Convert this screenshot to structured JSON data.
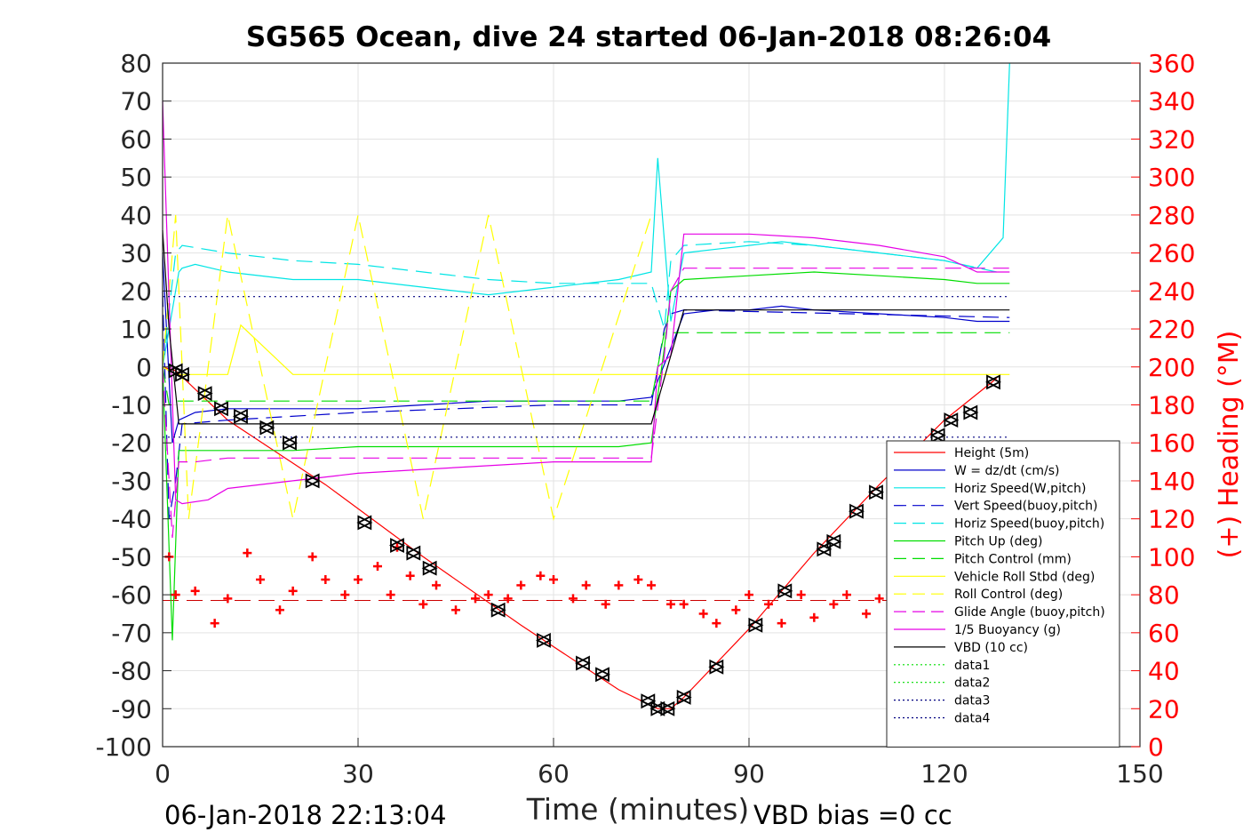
{
  "chart_data": {
    "type": "line",
    "title": "SG565 Ocean, dive 24 started 06-Jan-2018 08:26:04",
    "xlabel": "Time (minutes)",
    "ylabel": "",
    "y2label": "(+) Heading (°M)",
    "xlim": [
      0,
      150
    ],
    "ylim": [
      -100,
      80
    ],
    "y2lim": [
      0,
      360
    ],
    "xticks": [
      "0",
      "30",
      "60",
      "90",
      "120",
      "150"
    ],
    "yticks": [
      "80",
      "70",
      "60",
      "50",
      "40",
      "30",
      "20",
      "10",
      "0",
      "-10",
      "-20",
      "-30",
      "-40",
      "-50",
      "-60",
      "-70",
      "-80",
      "-90",
      "-100"
    ],
    "y2ticks": [
      "360",
      "340",
      "320",
      "300",
      "280",
      "260",
      "240",
      "220",
      "200",
      "180",
      "160",
      "140",
      "120",
      "100",
      "80",
      "60",
      "40",
      "20",
      "0"
    ],
    "grid": true,
    "legend_position": "bottom-right",
    "footer_left": "06-Jan-2018 22:13:04",
    "footer_right": "VBD bias =0 cc",
    "colors": {
      "red": "#ff0000",
      "blue": "#0000cc",
      "cyan": "#00e5e5",
      "green": "#00dd00",
      "yellow": "#ffff00",
      "magenta": "#e600e6",
      "black": "#000000"
    },
    "series": [
      {
        "name": "Height (5m)",
        "color": "#ff0000",
        "dash": "solid",
        "x": [
          0,
          2,
          10,
          25,
          40,
          55,
          70,
          76,
          78,
          80,
          90,
          100,
          110,
          120,
          128
        ],
        "y": [
          0,
          -1,
          -14,
          -31,
          -50,
          -68,
          -85,
          -90,
          -90,
          -87,
          -69,
          -49,
          -31,
          -14,
          -3
        ]
      },
      {
        "name": "W = dz/dt (cm/s)",
        "color": "#0000cc",
        "dash": "solid",
        "x": [
          0,
          1.5,
          2.5,
          5,
          10,
          20,
          30,
          40,
          50,
          60,
          70,
          75,
          78,
          80,
          85,
          90,
          95,
          100,
          110,
          120,
          125,
          130
        ],
        "y": [
          30,
          -20,
          -14,
          -12,
          -11,
          -11,
          -11,
          -10,
          -9,
          -9,
          -9,
          -8,
          5,
          14,
          15,
          15,
          16,
          15,
          14,
          13,
          12,
          12
        ]
      },
      {
        "name": "Horiz Speed(W,pitch)",
        "color": "#00e5e5",
        "dash": "solid",
        "x": [
          0,
          2.5,
          3,
          5,
          10,
          20,
          30,
          40,
          50,
          60,
          70,
          75,
          76,
          78,
          80,
          85,
          90,
          95,
          100,
          110,
          120,
          125,
          129,
          130
        ],
        "y": [
          0,
          25,
          26,
          27,
          25,
          23,
          23,
          21,
          19,
          21,
          23,
          25,
          55,
          12,
          30,
          31,
          32,
          33,
          32,
          30,
          28,
          26,
          34,
          80
        ]
      },
      {
        "name": "Vert Speed(buoy,pitch)",
        "color": "#0000cc",
        "dash": "dashed",
        "x": [
          0,
          1,
          2,
          3,
          10,
          30,
          60,
          75,
          77,
          78,
          80,
          130
        ],
        "y": [
          20,
          -40,
          -30,
          -15,
          -14,
          -12,
          -10,
          -10,
          10,
          14,
          15,
          13
        ]
      },
      {
        "name": "Horiz Speed(buoy,pitch)",
        "color": "#00e5e5",
        "dash": "dashed",
        "x": [
          0,
          2,
          3,
          10,
          20,
          30,
          40,
          50,
          60,
          70,
          75,
          77,
          78,
          80,
          90,
          100,
          110,
          120,
          128
        ],
        "y": [
          0,
          30,
          32,
          30,
          28,
          27,
          25,
          23,
          22,
          22,
          22,
          10,
          28,
          32,
          33,
          32,
          30,
          28,
          25
        ]
      },
      {
        "name": "Pitch Up (deg)",
        "color": "#00dd00",
        "dash": "solid",
        "x": [
          0,
          1.5,
          2.5,
          5,
          10,
          20,
          30,
          40,
          50,
          60,
          70,
          75,
          77,
          78,
          80,
          90,
          100,
          110,
          120,
          125,
          130
        ],
        "y": [
          0,
          -72,
          -22,
          -22,
          -22,
          -22,
          -21,
          -21,
          -21,
          -21,
          -21,
          -20,
          5,
          20,
          23,
          24,
          25,
          24,
          23,
          22,
          22
        ]
      },
      {
        "name": "Pitch Control (mm)",
        "color": "#00dd00",
        "dash": "dashed",
        "x": [
          0,
          1,
          2,
          3,
          10,
          30,
          60,
          75,
          77,
          78,
          80,
          130
        ],
        "y": [
          0,
          -10,
          -9,
          -9,
          -9,
          -9,
          -9,
          -9,
          9,
          9,
          9,
          9
        ]
      },
      {
        "name": "Vehicle Roll Stbd (deg)",
        "color": "#ffff00",
        "dash": "solid",
        "x": [
          0,
          2,
          5,
          10,
          12,
          20,
          30,
          40,
          50,
          60,
          75,
          80,
          90,
          100,
          110,
          120,
          130
        ],
        "y": [
          0,
          -2,
          -2,
          -2,
          11,
          -2,
          -2,
          -2,
          -2,
          -2,
          -2,
          -2,
          -2,
          -2,
          -2,
          -2,
          -2
        ]
      },
      {
        "name": "Roll Control (deg)",
        "color": "#ffff00",
        "dash": "dashed",
        "x": [
          0,
          2,
          4,
          10,
          20,
          30,
          40,
          50,
          60,
          75
        ],
        "y": [
          0,
          40,
          -40,
          40,
          -40,
          40,
          -40,
          40,
          -40,
          40
        ]
      },
      {
        "name": "Glide Angle (buoy,pitch)",
        "color": "#e600e6",
        "dash": "dashed",
        "x": [
          0,
          1.5,
          2.5,
          5,
          10,
          30,
          60,
          75,
          77,
          78,
          80,
          100,
          120,
          130
        ],
        "y": [
          0,
          -45,
          -25,
          -25,
          -24,
          -24,
          -24,
          -24,
          3,
          20,
          26,
          26,
          26,
          26
        ]
      },
      {
        "name": "1/5 Buoyancy (g)",
        "color": "#e600e6",
        "dash": "solid",
        "x": [
          0,
          2,
          3,
          7,
          10,
          20,
          30,
          40,
          50,
          60,
          70,
          75,
          76,
          78,
          80,
          90,
          100,
          110,
          120,
          125,
          130
        ],
        "y": [
          70,
          -35,
          -36,
          -35,
          -32,
          -30,
          -28,
          -27,
          -26,
          -25,
          -25,
          -25,
          0,
          3,
          35,
          35,
          34,
          32,
          29,
          25,
          25
        ]
      },
      {
        "name": "VBD (10 cc)",
        "color": "#000000",
        "dash": "solid",
        "x": [
          0,
          1,
          2.5,
          5,
          10,
          30,
          60,
          75,
          78,
          80,
          130
        ],
        "y": [
          36,
          10,
          -15,
          -15,
          -15,
          -15,
          -15,
          -15,
          3,
          15,
          15
        ]
      },
      {
        "name": "data1",
        "color": "#00dd00",
        "dash": "dotted",
        "x": [],
        "y": []
      },
      {
        "name": "data2",
        "color": "#00dd00",
        "dash": "dotted",
        "x": [],
        "y": []
      },
      {
        "name": "data3",
        "color": "#000080",
        "dash": "dotted",
        "x": [
          0,
          130
        ],
        "y": [
          18.5,
          18.5
        ]
      },
      {
        "name": "data4",
        "color": "#000080",
        "dash": "dotted",
        "x": [
          0,
          130
        ],
        "y": [
          -18.5,
          -18.5
        ]
      }
    ],
    "heading_reference": {
      "color": "#cc0000",
      "y2": [
        77,
        77
      ],
      "x": [
        0,
        130
      ]
    },
    "heading_marks": {
      "color": "#ff0000",
      "axis": "y2",
      "x": [
        1,
        2,
        5,
        8,
        10,
        13,
        15,
        18,
        20,
        23,
        25,
        28,
        30,
        33,
        35,
        36,
        38,
        40,
        42,
        45,
        48,
        50,
        53,
        55,
        58,
        60,
        63,
        65,
        68,
        70,
        73,
        75,
        78,
        80,
        83,
        85,
        88,
        90,
        93,
        95,
        98,
        100,
        103,
        105,
        108,
        110
      ],
      "y2": [
        100,
        80,
        82,
        65,
        78,
        102,
        88,
        72,
        82,
        100,
        88,
        80,
        88,
        95,
        80,
        105,
        90,
        75,
        85,
        72,
        78,
        80,
        78,
        85,
        90,
        88,
        78,
        85,
        75,
        85,
        88,
        85,
        75,
        75,
        70,
        65,
        72,
        80,
        75,
        65,
        80,
        68,
        75,
        80,
        70,
        78
      ]
    },
    "depth_markers": {
      "color": "#000000",
      "axis": "y",
      "x": [
        2,
        3,
        6.5,
        9,
        12,
        16,
        19.5,
        23,
        31,
        36,
        38.5,
        41,
        51.5,
        58.5,
        64.5,
        67.5,
        74.5,
        76,
        77.5,
        80,
        85,
        91,
        95.5,
        101.5,
        103,
        106.5,
        109.5,
        113,
        119,
        121,
        124,
        127.5
      ],
      "y": [
        -1,
        -2,
        -7,
        -11,
        -13,
        -16,
        -20,
        -30,
        -41,
        -47,
        -49,
        -53,
        -64,
        -72,
        -78,
        -81,
        -88,
        -90,
        -90,
        -87,
        -79,
        -68,
        -59,
        -48,
        -46,
        -38,
        -33,
        -28,
        -18,
        -14,
        -12,
        -4
      ]
    }
  }
}
